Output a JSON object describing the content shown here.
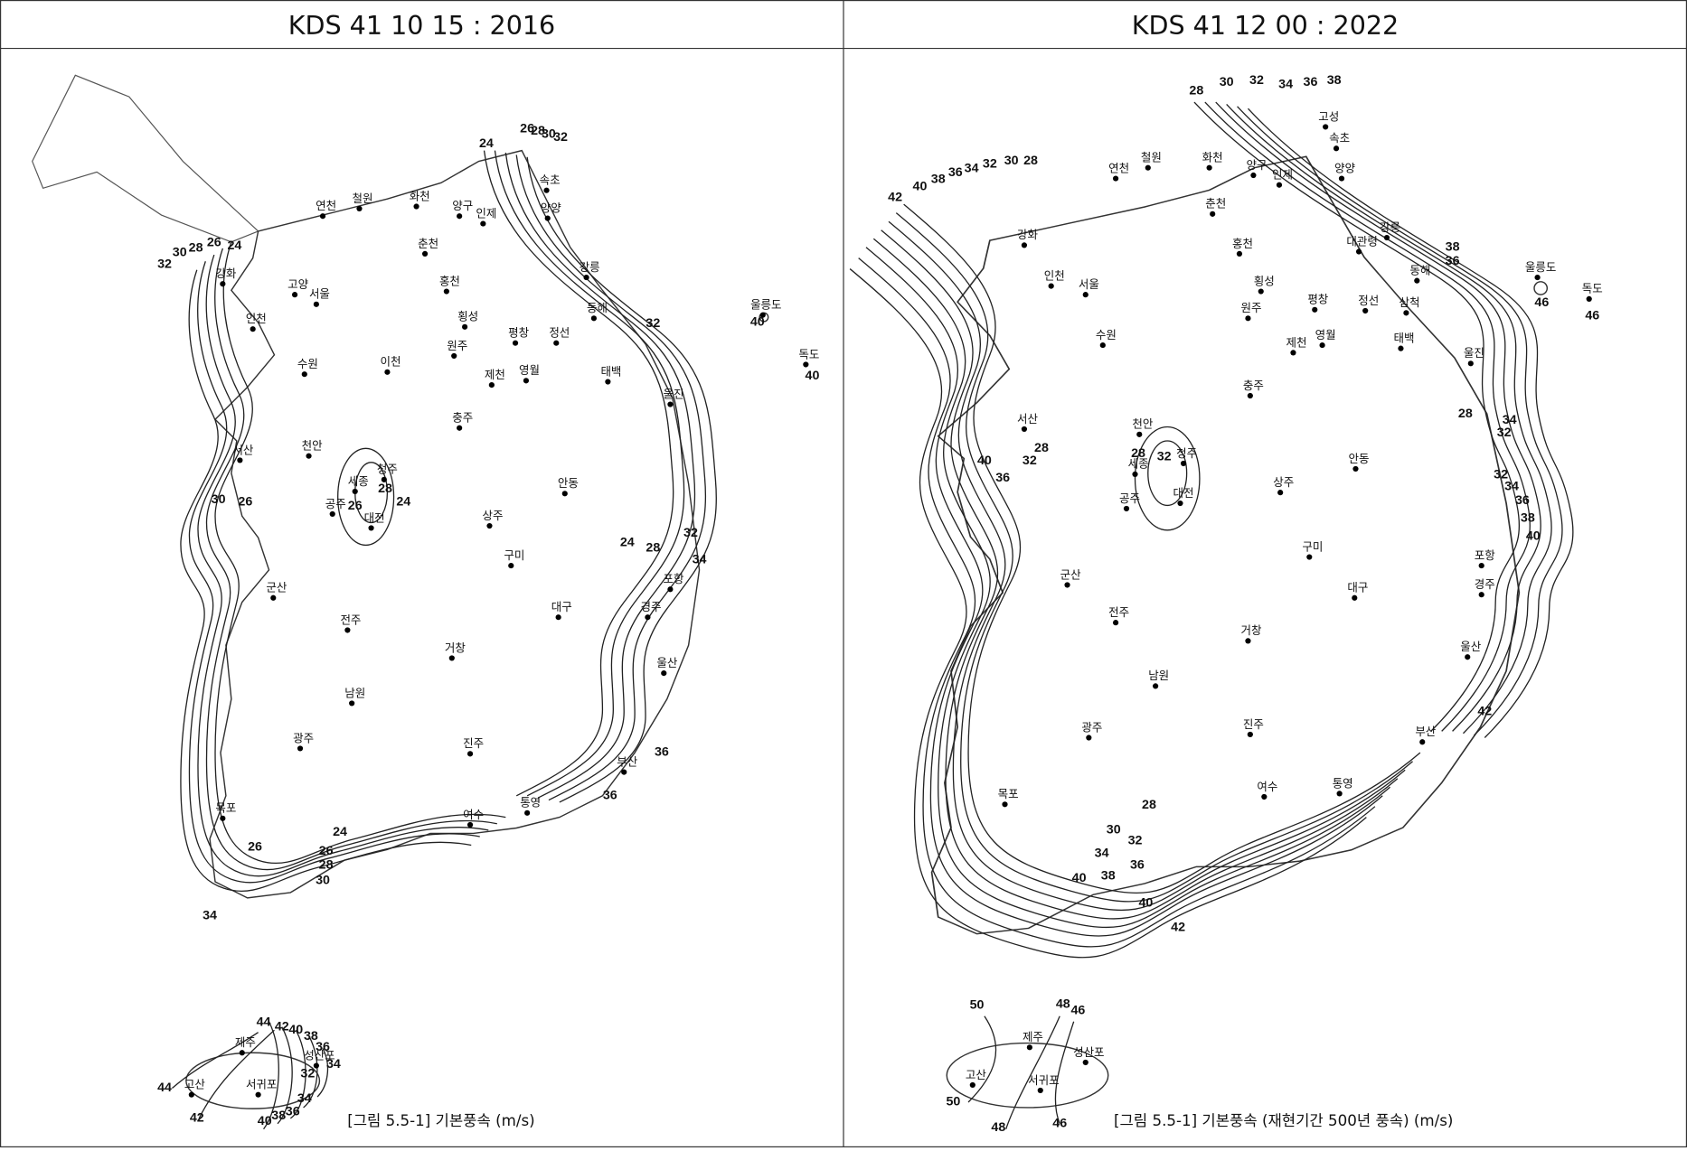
{
  "panels": [
    {
      "title": "KDS 41 10 15 : 2016",
      "caption": "[그림 5.5-1] 기본풍속 (m/s)",
      "contour_labels": [
        24,
        26,
        28,
        30,
        32,
        24,
        26,
        28,
        30,
        32,
        30,
        26,
        32,
        24,
        28,
        32,
        34,
        36,
        36,
        26,
        28,
        24,
        24,
        26,
        28,
        30,
        34,
        26,
        44,
        42,
        40,
        38,
        36,
        34,
        32,
        34,
        36,
        38,
        40,
        44,
        42,
        40,
        40
      ],
      "places": [
        "연천",
        "철원",
        "화천",
        "양구",
        "인제",
        "속초",
        "양양",
        "강화",
        "고양",
        "서울",
        "춘천",
        "홍천",
        "강릉",
        "횡성",
        "원주",
        "평창",
        "정선",
        "동해",
        "인천",
        "수원",
        "이천",
        "충주",
        "제천",
        "영월",
        "태백",
        "울진",
        "서산",
        "천안",
        "청주",
        "세종",
        "대전",
        "안동",
        "공주",
        "상주",
        "포항",
        "대구",
        "경주",
        "울산",
        "부산",
        "전주",
        "군산",
        "목포",
        "광주",
        "여수",
        "진주",
        "남원",
        "통영",
        "거창",
        "구미",
        "울릉도",
        "독도",
        "제주",
        "고산",
        "서귀포",
        "성산포"
      ]
    },
    {
      "title": "KDS 41 12 00 : 2022",
      "caption": "[그림 5.5-1] 기본풍속 (재현기간 500년 풍속) (m/s)",
      "contour_labels": [
        28,
        30,
        32,
        34,
        36,
        38,
        42,
        40,
        38,
        36,
        34,
        32,
        30,
        28,
        38,
        36,
        28,
        34,
        32,
        32,
        34,
        36,
        38,
        40,
        42,
        40,
        36,
        32,
        28,
        28,
        32,
        28,
        30,
        32,
        34,
        36,
        38,
        40,
        40,
        42,
        46,
        46,
        50,
        48,
        46,
        50,
        48,
        46
      ],
      "places": [
        "철원",
        "화천",
        "양구",
        "인제",
        "고성",
        "속초",
        "양양",
        "연천",
        "강화",
        "춘천",
        "홍천",
        "강릉",
        "대관령",
        "동해",
        "횡성",
        "원주",
        "평창",
        "정선",
        "삼척",
        "태백",
        "울진",
        "인천",
        "서울",
        "수원",
        "충주",
        "제천",
        "영월",
        "서산",
        "천안",
        "청주",
        "대전",
        "세종",
        "공주",
        "안동",
        "상주",
        "포항",
        "대구",
        "경주",
        "울산",
        "부산",
        "전주",
        "군산",
        "목포",
        "광주",
        "여수",
        "진주",
        "남원",
        "통영",
        "거창",
        "구미",
        "울릉도",
        "독도",
        "제주",
        "고산",
        "서귀포",
        "성산포"
      ]
    }
  ]
}
